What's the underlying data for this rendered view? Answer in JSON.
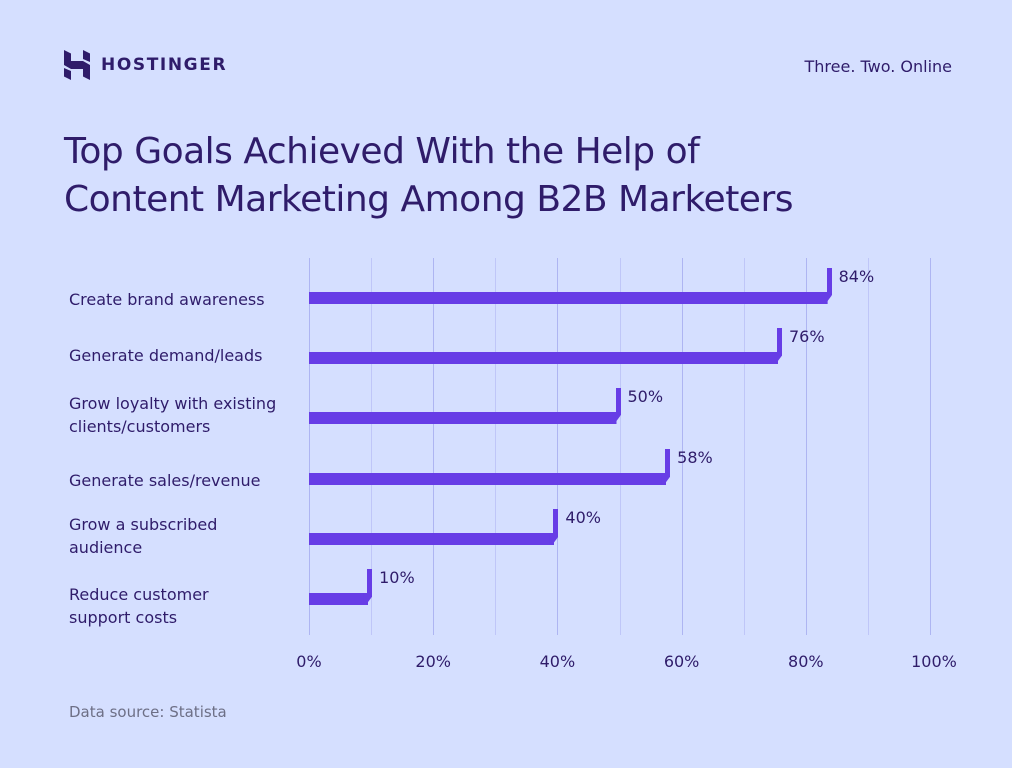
{
  "brand": {
    "name": "HOSTINGER",
    "tagline": "Three. Two. Online"
  },
  "title_lines": [
    "Top Goals Achieved With the Help of",
    "Content Marketing Among B2B Marketers"
  ],
  "source": "Data source: Statista",
  "colors": {
    "background": "#D5DFFF",
    "bar": "#673DE6",
    "text": "#2F1C6A",
    "grid": "#B4BAF5",
    "muted": "#6D6F86"
  },
  "chart_data": {
    "type": "bar",
    "orientation": "horizontal",
    "title": "Top Goals Achieved With the Help of Content Marketing Among B2B Marketers",
    "categories": [
      "Create brand awareness",
      "Generate demand/leads",
      "Grow loyalty with existing clients/customers",
      "Generate sales/revenue",
      "Grow a subscribed audience",
      "Reduce customer support costs"
    ],
    "values": [
      84,
      76,
      50,
      58,
      40,
      10
    ],
    "value_labels": [
      "84%",
      "76%",
      "50%",
      "58%",
      "40%",
      "10%"
    ],
    "xlabel": "",
    "ylabel": "",
    "xlim": [
      0,
      100
    ],
    "x_ticks": [
      "0%",
      "20%",
      "40%",
      "60%",
      "80%",
      "100%"
    ],
    "grid": true,
    "gridline_step": 10,
    "legend": "none",
    "source": "Statista"
  },
  "labels": [
    [
      "Create brand awareness"
    ],
    [
      "Generate demand/leads"
    ],
    [
      "Grow loyalty with existing",
      "clients/customers"
    ],
    [
      "Generate sales/revenue"
    ],
    [
      "Grow a subscribed",
      "audience"
    ],
    [
      "Reduce customer",
      "support costs"
    ]
  ]
}
